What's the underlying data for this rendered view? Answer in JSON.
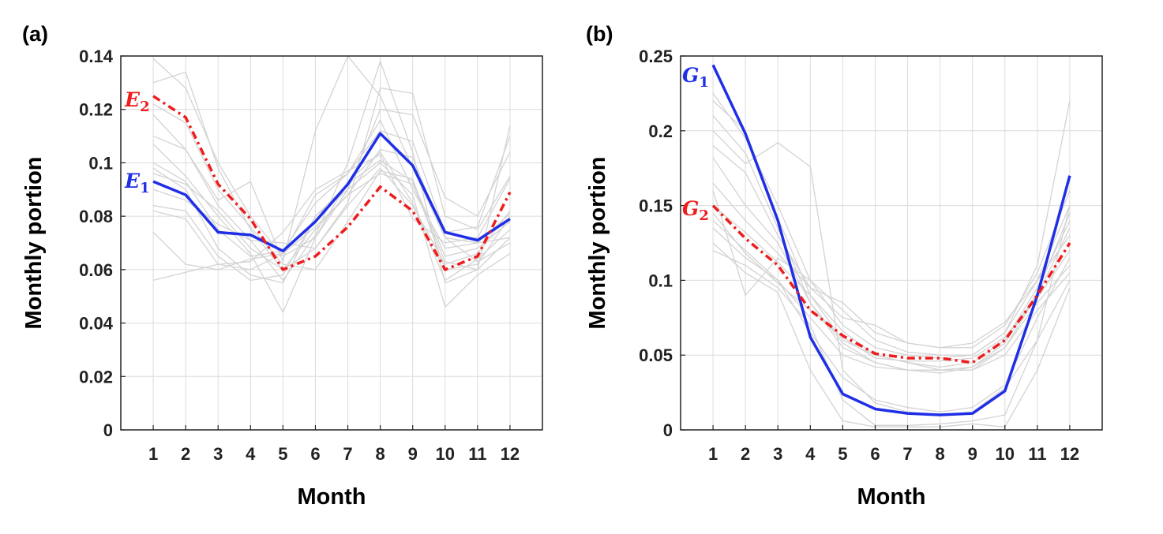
{
  "colors": {
    "E1": "#1f2fe6",
    "E2": "#ee1c1c",
    "G1": "#1f2fe6",
    "G2": "#ee1c1c",
    "background_lines": "#d3d3d3",
    "grid": "#dcdcdc"
  },
  "chart_data": [
    {
      "type": "line",
      "panel_label": "(a)",
      "xlabel": "Month",
      "ylabel": "Monthly portion",
      "x": [
        1,
        2,
        3,
        4,
        5,
        6,
        7,
        8,
        9,
        10,
        11,
        12
      ],
      "xlim": [
        0,
        13
      ],
      "ylim": [
        0,
        0.14
      ],
      "yticks": [
        0,
        0.02,
        0.04,
        0.06,
        0.08,
        0.1,
        0.12,
        0.14
      ],
      "ytick_labels": [
        "0",
        "0.02",
        "0.04",
        "0.06",
        "0.08",
        "0.1",
        "0.12",
        "0.14"
      ],
      "xtick_labels": [
        "1",
        "2",
        "3",
        "4",
        "5",
        "6",
        "7",
        "8",
        "9",
        "10",
        "11",
        "12"
      ],
      "grid": true,
      "series": [
        {
          "name": "E",
          "sub": "1",
          "style": "solid",
          "values": [
            0.093,
            0.088,
            0.074,
            0.073,
            0.067,
            0.078,
            0.092,
            0.111,
            0.099,
            0.074,
            0.071,
            0.079
          ]
        },
        {
          "name": "E",
          "sub": "2",
          "style": "dashdot",
          "values": [
            0.125,
            0.117,
            0.092,
            0.079,
            0.06,
            0.065,
            0.076,
            0.091,
            0.082,
            0.06,
            0.065,
            0.089
          ]
        }
      ],
      "background_series": [
        [
          0.139,
          0.128,
          0.1,
          0.08,
          0.065,
          0.072,
          0.09,
          0.12,
          0.118,
          0.087,
          0.08,
          0.104
        ],
        [
          0.13,
          0.134,
          0.098,
          0.075,
          0.06,
          0.068,
          0.085,
          0.128,
          0.126,
          0.08,
          0.075,
          0.095
        ],
        [
          0.122,
          0.115,
          0.09,
          0.076,
          0.062,
          0.06,
          0.078,
          0.097,
          0.094,
          0.06,
          0.062,
          0.08
        ],
        [
          0.118,
          0.105,
          0.086,
          0.093,
          0.063,
          0.112,
          0.14,
          0.125,
          0.098,
          0.072,
          0.07,
          0.072
        ],
        [
          0.11,
          0.105,
          0.084,
          0.071,
          0.056,
          0.073,
          0.1,
          0.138,
          0.104,
          0.055,
          0.06,
          0.114
        ],
        [
          0.107,
          0.095,
          0.08,
          0.066,
          0.044,
          0.072,
          0.093,
          0.104,
          0.085,
          0.056,
          0.064,
          0.075
        ],
        [
          0.1,
          0.093,
          0.075,
          0.065,
          0.067,
          0.085,
          0.096,
          0.116,
          0.09,
          0.068,
          0.07,
          0.081
        ],
        [
          0.098,
          0.09,
          0.068,
          0.058,
          0.055,
          0.08,
          0.092,
          0.101,
          0.093,
          0.065,
          0.068,
          0.078
        ],
        [
          0.096,
          0.092,
          0.082,
          0.068,
          0.06,
          0.075,
          0.088,
          0.105,
          0.102,
          0.072,
          0.063,
          0.07
        ],
        [
          0.084,
          0.082,
          0.065,
          0.056,
          0.058,
          0.08,
          0.09,
          0.1,
          0.088,
          0.046,
          0.058,
          0.066
        ],
        [
          0.082,
          0.079,
          0.062,
          0.06,
          0.066,
          0.088,
          0.096,
          0.112,
          0.108,
          0.074,
          0.076,
          0.11
        ],
        [
          0.074,
          0.062,
          0.06,
          0.064,
          0.066,
          0.076,
          0.088,
          0.096,
          0.092,
          0.063,
          0.06,
          0.072
        ],
        [
          0.056,
          0.059,
          0.062,
          0.063,
          0.074,
          0.09,
          0.097,
          0.103,
          0.079,
          0.07,
          0.072,
          0.094
        ],
        [
          0.09,
          0.086,
          0.077,
          0.071,
          0.07,
          0.068,
          0.084,
          0.098,
          0.084,
          0.062,
          0.066,
          0.082
        ]
      ]
    },
    {
      "type": "line",
      "panel_label": "(b)",
      "xlabel": "Month",
      "ylabel": "Monthly portion",
      "x": [
        1,
        2,
        3,
        4,
        5,
        6,
        7,
        8,
        9,
        10,
        11,
        12
      ],
      "xlim": [
        0,
        13
      ],
      "ylim": [
        0,
        0.25
      ],
      "yticks": [
        0,
        0.05,
        0.1,
        0.15,
        0.2,
        0.25
      ],
      "ytick_labels": [
        "0",
        "0.05",
        "0.1",
        "0.15",
        "0.2",
        "0.25"
      ],
      "xtick_labels": [
        "1",
        "2",
        "3",
        "4",
        "5",
        "6",
        "7",
        "8",
        "9",
        "10",
        "11",
        "12"
      ],
      "grid": true,
      "series": [
        {
          "name": "G",
          "sub": "1",
          "style": "solid",
          "values": [
            0.244,
            0.198,
            0.14,
            0.062,
            0.024,
            0.014,
            0.011,
            0.01,
            0.011,
            0.026,
            0.09,
            0.17
          ]
        },
        {
          "name": "G",
          "sub": "2",
          "style": "dashdot",
          "values": [
            0.15,
            0.128,
            0.11,
            0.08,
            0.063,
            0.051,
            0.048,
            0.048,
            0.045,
            0.06,
            0.09,
            0.125
          ]
        }
      ],
      "background_series": [
        [
          0.225,
          0.195,
          0.15,
          0.1,
          0.07,
          0.055,
          0.05,
          0.048,
          0.05,
          0.065,
          0.1,
          0.15
        ],
        [
          0.22,
          0.2,
          0.142,
          0.09,
          0.06,
          0.05,
          0.045,
          0.042,
          0.045,
          0.06,
          0.095,
          0.14
        ],
        [
          0.21,
          0.185,
          0.135,
          0.085,
          0.055,
          0.045,
          0.04,
          0.04,
          0.042,
          0.055,
          0.09,
          0.135
        ],
        [
          0.2,
          0.178,
          0.192,
          0.176,
          0.04,
          0.018,
          0.012,
          0.01,
          0.012,
          0.028,
          0.06,
          0.15
        ],
        [
          0.19,
          0.172,
          0.13,
          0.095,
          0.075,
          0.07,
          0.058,
          0.055,
          0.058,
          0.072,
          0.1,
          0.13
        ],
        [
          0.165,
          0.14,
          0.118,
          0.095,
          0.085,
          0.065,
          0.058,
          0.055,
          0.055,
          0.07,
          0.105,
          0.16
        ],
        [
          0.16,
          0.09,
          0.115,
          0.1,
          0.08,
          0.06,
          0.052,
          0.05,
          0.05,
          0.065,
          0.11,
          0.22
        ],
        [
          0.15,
          0.132,
          0.112,
          0.09,
          0.066,
          0.05,
          0.045,
          0.04,
          0.04,
          0.055,
          0.085,
          0.11
        ],
        [
          0.145,
          0.118,
          0.098,
          0.08,
          0.062,
          0.048,
          0.046,
          0.046,
          0.048,
          0.062,
          0.088,
          0.12
        ],
        [
          0.14,
          0.12,
          0.1,
          0.075,
          0.05,
          0.042,
          0.04,
          0.04,
          0.04,
          0.05,
          0.08,
          0.105
        ],
        [
          0.135,
          0.115,
          0.1,
          0.065,
          0.035,
          0.02,
          0.015,
          0.012,
          0.015,
          0.03,
          0.075,
          0.115
        ],
        [
          0.125,
          0.105,
          0.092,
          0.04,
          0.006,
          0.002,
          0.002,
          0.002,
          0.004,
          0.002,
          0.04,
          0.095
        ],
        [
          0.12,
          0.11,
          0.095,
          0.07,
          0.02,
          0.003,
          0.003,
          0.004,
          0.006,
          0.01,
          0.06,
          0.1
        ],
        [
          0.182,
          0.15,
          0.125,
          0.085,
          0.058,
          0.045,
          0.04,
          0.038,
          0.042,
          0.058,
          0.092,
          0.145
        ]
      ]
    }
  ]
}
